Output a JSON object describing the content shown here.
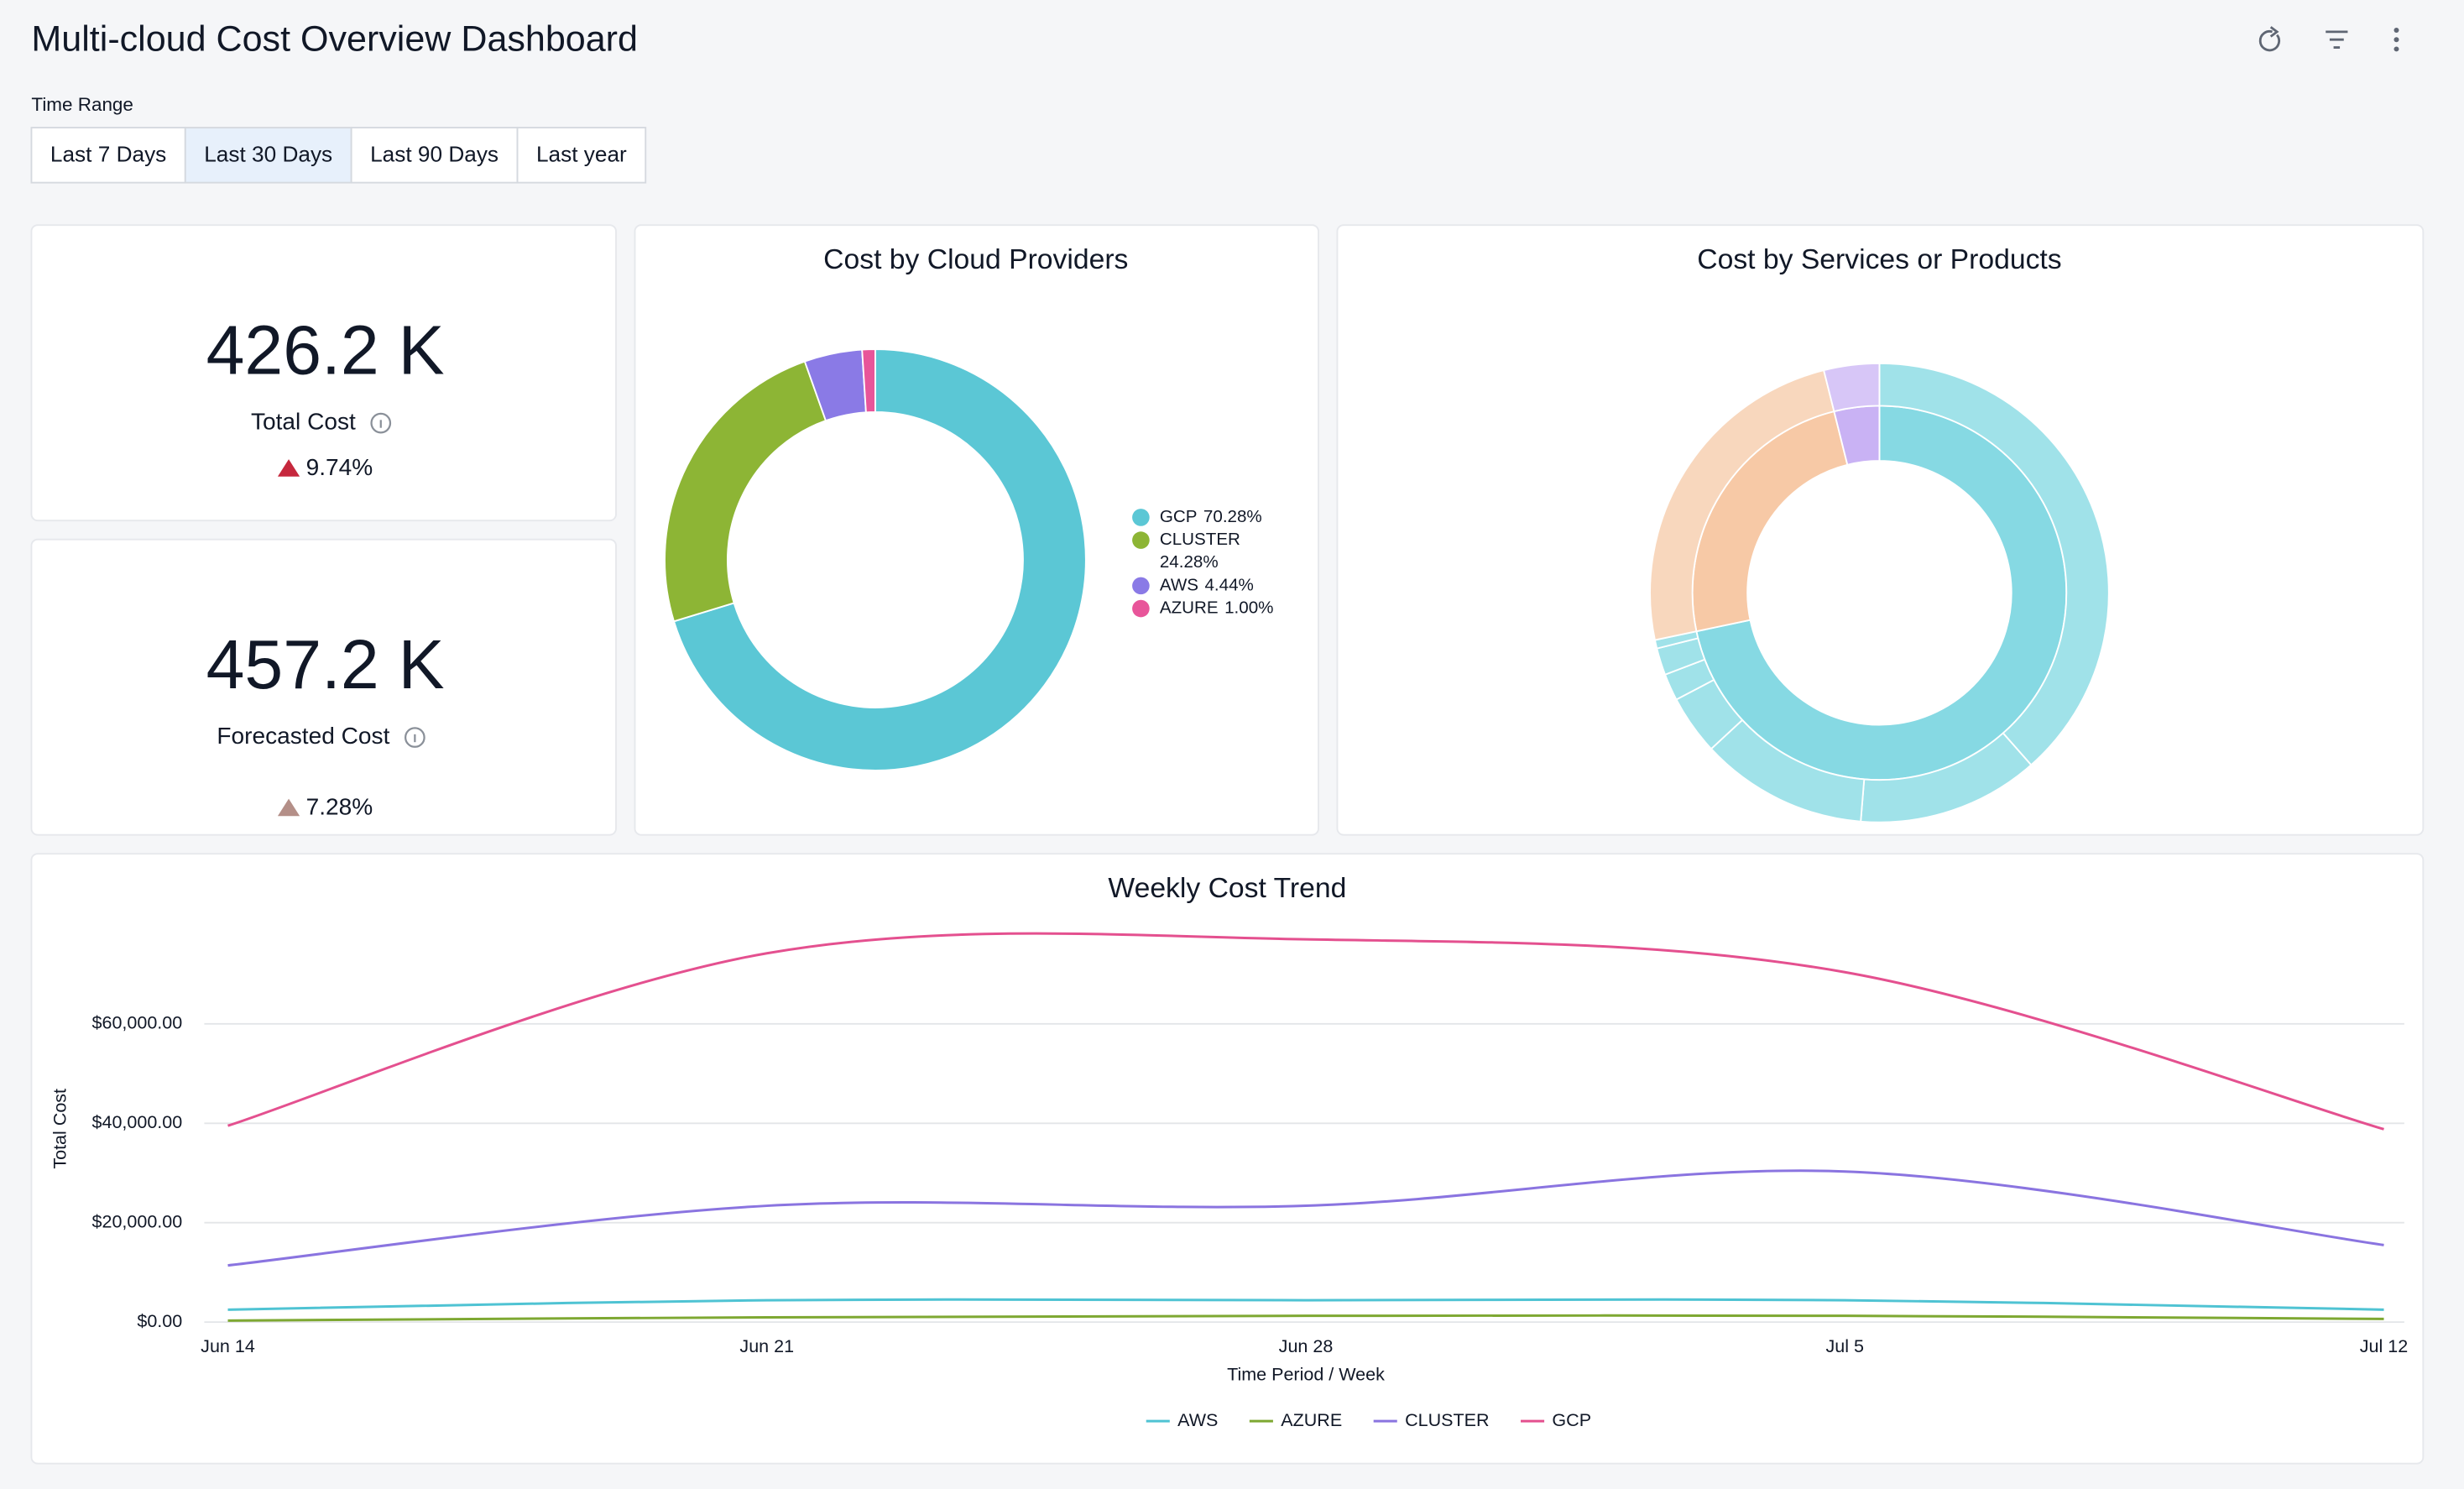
{
  "header": {
    "title": "Multi-cloud Cost Overview Dashboard"
  },
  "time_range": {
    "label": "Time Range",
    "options": [
      "Last 7 Days",
      "Last 30 Days",
      "Last 90 Days",
      "Last year"
    ],
    "selected": 1
  },
  "kpis": [
    {
      "value": "426.2 K",
      "label": "Total Cost",
      "change": "9.74%",
      "direction": "up",
      "change_color": "#c6283d"
    },
    {
      "value": "457.2 K",
      "label": "Forecasted Cost",
      "change": "7.28%",
      "direction": "up",
      "change_color": "#b48f88"
    }
  ],
  "chart_data": [
    {
      "type": "donut",
      "title": "Cost by Cloud Providers",
      "categories": [
        "GCP",
        "CLUSTER",
        "AWS",
        "AZURE"
      ],
      "values": [
        70.28,
        24.28,
        4.44,
        1.0
      ],
      "value_labels": [
        "70.28%",
        "24.28%",
        "4.44%",
        "1.00%"
      ],
      "colors": [
        "#5bc7d5",
        "#8db535",
        "#8a7ae6",
        "#e8559a"
      ],
      "legend": "right"
    },
    {
      "type": "sunburst",
      "title": "Cost by Services or Products",
      "segments": [
        {
          "value": 71.7,
          "color": "#86d9e3",
          "child_color": "#a0e2e9",
          "children": [
            38.5,
            12.8,
            11.8,
            4.2,
            1.9,
            1.9,
            0.6
          ]
        },
        {
          "value": 24.4,
          "color": "#f7c9a6",
          "child_color": "#f8d7bd",
          "children": [
            24.4
          ]
        },
        {
          "value": 3.9,
          "color": "#c9b2f4",
          "child_color": "#d7c6f7",
          "children": [
            3.9
          ]
        }
      ]
    },
    {
      "type": "line",
      "title": "Weekly Cost Trend",
      "x_label": "Time Period / Week",
      "y_label": "Total Cost",
      "categories": [
        "Jun 14",
        "Jun 21",
        "Jun 28",
        "Jul 5",
        "Jul 12"
      ],
      "ylim": [
        0,
        80000
      ],
      "yticks": [
        {
          "value": 0,
          "label": "$0.00"
        },
        {
          "value": 20000,
          "label": "$20,000.00"
        },
        {
          "value": 40000,
          "label": "$40,000.00"
        },
        {
          "value": 60000,
          "label": "$60,000.00"
        }
      ],
      "grid": true,
      "legend": "bottom",
      "series": [
        {
          "name": "AWS",
          "color": "#4fc3d3",
          "values": [
            2500,
            4400,
            4400,
            4400,
            2500
          ]
        },
        {
          "name": "AZURE",
          "color": "#7ea832",
          "values": [
            300,
            950,
            1260,
            1260,
            630
          ]
        },
        {
          "name": "CLUSTER",
          "color": "#8a74e0",
          "values": [
            11400,
            23400,
            23400,
            30300,
            15500
          ]
        },
        {
          "name": "GCP",
          "color": "#e4508f",
          "values": [
            39500,
            74200,
            77000,
            70400,
            38800
          ]
        }
      ]
    }
  ]
}
